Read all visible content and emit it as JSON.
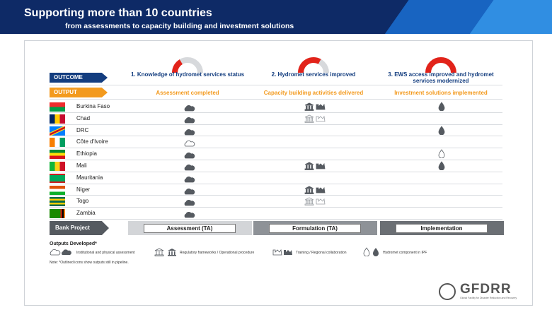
{
  "header": {
    "title": "Supporting more than 10 countries",
    "subtitle": "from assessments to capacity building and investment solutions"
  },
  "row_labels": {
    "outcome": "OUTCOME",
    "output": "OUTPUT",
    "bank_project": "Bank Project"
  },
  "columns": [
    {
      "outcome": "1. Knowledge of hydromet services status",
      "output": "Assessment completed",
      "bank_project": "Assessment (TA)",
      "gauge_level": 0.33
    },
    {
      "outcome": "2. Hydromet services improved",
      "output": "Capacity building activities delivered",
      "bank_project": "Formulation (TA)",
      "gauge_level": 0.66
    },
    {
      "outcome": "3. EWS access improved and hydromet services modernized",
      "output": "Investment solutions implemented",
      "bank_project": "Implementation",
      "gauge_level": 1.0
    }
  ],
  "countries": [
    {
      "name": "Burkina Faso",
      "assessment": "filled",
      "capacity": "filled",
      "investment": "filled"
    },
    {
      "name": "Chad",
      "assessment": "filled",
      "capacity": "outline",
      "investment": "none"
    },
    {
      "name": "DRC",
      "assessment": "filled",
      "capacity": "none",
      "investment": "filled"
    },
    {
      "name": "Côte d'Ivoire",
      "assessment": "outline",
      "capacity": "none",
      "investment": "none"
    },
    {
      "name": "Ethiopia",
      "assessment": "filled",
      "capacity": "none",
      "investment": "outline"
    },
    {
      "name": "Mali",
      "assessment": "filled",
      "capacity": "filled",
      "investment": "filled"
    },
    {
      "name": "Mauritania",
      "assessment": "filled",
      "capacity": "none",
      "investment": "none"
    },
    {
      "name": "Niger",
      "assessment": "filled",
      "capacity": "filled",
      "investment": "none"
    },
    {
      "name": "Togo",
      "assessment": "filled",
      "capacity": "outline",
      "investment": "none"
    },
    {
      "name": "Zambia",
      "assessment": "filled",
      "capacity": "none",
      "investment": "none"
    }
  ],
  "legend": {
    "title": "Outputs Developed*",
    "items": [
      "Institutional and physical assessment",
      "Regulatory frameworks / Operational procedure",
      "Training / Regional collaboration",
      "Hydromet component in IPF"
    ],
    "note": "Note: *Outlined icons show outputs still in pipeline."
  },
  "logo": {
    "name": "GFDRR",
    "tagline": "Global Facility for Disaster Reduction and Recovery"
  },
  "colors": {
    "navy": "#133d7f",
    "orange": "#f39a1e",
    "red": "#e2231a",
    "icon": "#555a60"
  }
}
